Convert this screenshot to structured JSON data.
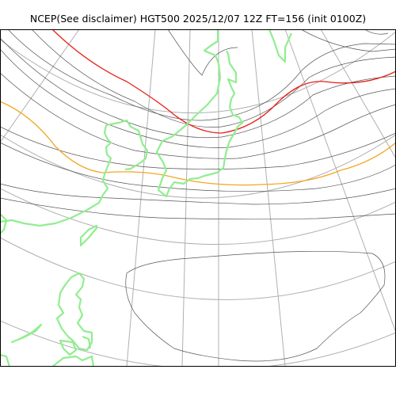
{
  "title": "NCEP(See disclaimer) HGT500 2025/12/07 12Z FT=156 (init 0100Z)",
  "colors": {
    "background": "#ffffff",
    "graticule": "#b0b0b0",
    "contour": "#555555",
    "highlight_contour_red": "#e8201a",
    "highlight_contour_orange": "#f5a623",
    "coastline": "#90ee90",
    "frame": "#000000"
  },
  "legend": []
}
